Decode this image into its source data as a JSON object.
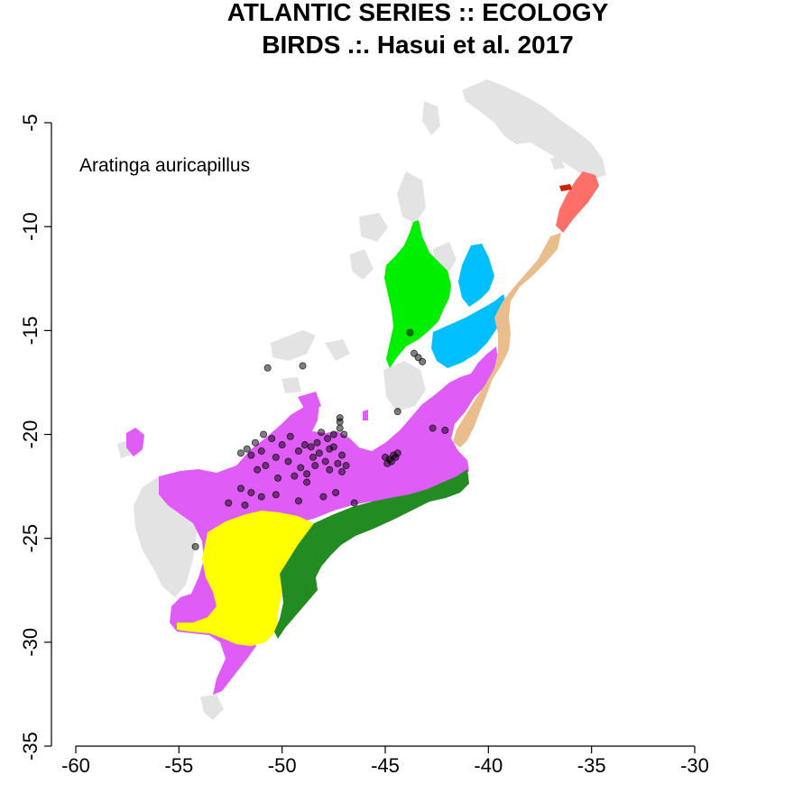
{
  "title": {
    "line1": "ATLANTIC SERIES :: ECOLOGY",
    "line2": "BIRDS .:. Hasui et al. 2017"
  },
  "species": "Aratinga auricapillus",
  "colors": {
    "background": "#ffffff",
    "unassigned_land": "#e3e3e3",
    "purple_region": "#df5cf6",
    "yellow_region": "#ffff00",
    "dark_green_region": "#228b22",
    "bright_green_region": "#00ee00",
    "sky_blue_region": "#00bfff",
    "tan_region": "#e9be8c",
    "salmon_region": "#ff6f6a",
    "red_patch": "#cc2200",
    "occurrence_points": "#000000"
  },
  "chart_data": {
    "type": "scatter",
    "xlim": [
      -60,
      -30
    ],
    "ylim": [
      -35,
      -5
    ],
    "x_ticks": [
      "-60",
      "-55",
      "-50",
      "-45",
      "-40",
      "-35",
      "-30"
    ],
    "y_ticks": [
      "-5",
      "-10",
      "-15",
      "-20",
      "-25",
      "-30",
      "-35"
    ],
    "x_tick_values": [
      -60,
      -55,
      -50,
      -45,
      -40,
      -35,
      -30
    ],
    "y_tick_values": [
      -5,
      -10,
      -15,
      -20,
      -25,
      -30,
      -35
    ],
    "grid": false,
    "annotation": "Aratinga auricapillus",
    "points": [
      {
        "x": -43.8,
        "y": -15.1
      },
      {
        "x": -43.6,
        "y": -16.1
      },
      {
        "x": -43.4,
        "y": -16.3
      },
      {
        "x": -43.2,
        "y": -16.5
      },
      {
        "x": -49.0,
        "y": -16.7
      },
      {
        "x": -50.7,
        "y": -16.8
      },
      {
        "x": -47.2,
        "y": -19.2
      },
      {
        "x": -47.2,
        "y": -19.4
      },
      {
        "x": -47.2,
        "y": -19.7
      },
      {
        "x": -47.5,
        "y": -20.0
      },
      {
        "x": -47.8,
        "y": -20.2
      },
      {
        "x": -48.1,
        "y": -19.9
      },
      {
        "x": -48.3,
        "y": -20.4
      },
      {
        "x": -48.6,
        "y": -20.6
      },
      {
        "x": -47.0,
        "y": -20.0
      },
      {
        "x": -48.2,
        "y": -20.9
      },
      {
        "x": -48.5,
        "y": -21.1
      },
      {
        "x": -47.9,
        "y": -21.3
      },
      {
        "x": -47.3,
        "y": -21.4
      },
      {
        "x": -47.7,
        "y": -20.7
      },
      {
        "x": -47.1,
        "y": -21.0
      },
      {
        "x": -47.5,
        "y": -20.6
      },
      {
        "x": -48.9,
        "y": -20.5
      },
      {
        "x": -49.2,
        "y": -20.8
      },
      {
        "x": -49.6,
        "y": -20.1
      },
      {
        "x": -50.0,
        "y": -20.5
      },
      {
        "x": -50.5,
        "y": -20.2
      },
      {
        "x": -50.9,
        "y": -20.0
      },
      {
        "x": -51.3,
        "y": -20.4
      },
      {
        "x": -51.7,
        "y": -20.7
      },
      {
        "x": -52.0,
        "y": -20.9
      },
      {
        "x": -51.5,
        "y": -21.0
      },
      {
        "x": -51.0,
        "y": -20.8
      },
      {
        "x": -50.3,
        "y": -21.1
      },
      {
        "x": -49.7,
        "y": -21.3
      },
      {
        "x": -49.1,
        "y": -21.6
      },
      {
        "x": -48.8,
        "y": -21.9
      },
      {
        "x": -48.4,
        "y": -21.5
      },
      {
        "x": -47.7,
        "y": -21.7
      },
      {
        "x": -47.1,
        "y": -21.8
      },
      {
        "x": -46.9,
        "y": -21.5
      },
      {
        "x": -50.8,
        "y": -21.5
      },
      {
        "x": -51.2,
        "y": -21.7
      },
      {
        "x": -50.2,
        "y": -22.1
      },
      {
        "x": -49.4,
        "y": -22.0
      },
      {
        "x": -48.8,
        "y": -22.3
      },
      {
        "x": -45.0,
        "y": -21.1
      },
      {
        "x": -44.8,
        "y": -21.2
      },
      {
        "x": -44.6,
        "y": -21.0
      },
      {
        "x": -44.9,
        "y": -21.4
      },
      {
        "x": -44.7,
        "y": -21.3
      },
      {
        "x": -44.5,
        "y": -21.1
      },
      {
        "x": -44.4,
        "y": -20.9
      },
      {
        "x": -44.4,
        "y": -18.9
      },
      {
        "x": -42.7,
        "y": -19.7
      },
      {
        "x": -42.1,
        "y": -19.8
      },
      {
        "x": -52.0,
        "y": -22.6
      },
      {
        "x": -51.5,
        "y": -22.8
      },
      {
        "x": -51.0,
        "y": -23.0
      },
      {
        "x": -50.3,
        "y": -22.9
      },
      {
        "x": -49.2,
        "y": -23.2
      },
      {
        "x": -48.0,
        "y": -23.0
      },
      {
        "x": -47.4,
        "y": -22.8
      },
      {
        "x": -52.6,
        "y": -23.3
      },
      {
        "x": -51.8,
        "y": -23.4
      },
      {
        "x": -46.5,
        "y": -23.3
      },
      {
        "x": -54.2,
        "y": -25.4
      }
    ]
  }
}
